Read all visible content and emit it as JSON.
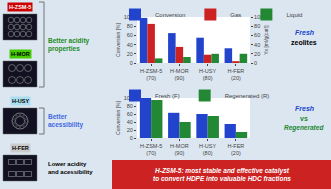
{
  "chart_data": [
    {
      "type": "bar",
      "categories": [
        "H-ZSM-5\n(70)",
        "H-MOR\n(90)",
        "H-USY\n(80)",
        "H-FER\n(20)"
      ],
      "series": [
        {
          "name": "Conversion",
          "color": "#2244cc",
          "values": [
            98,
            65,
            55,
            32
          ]
        },
        {
          "name": "Gas",
          "color": "#cc2222",
          "values": [
            85,
            35,
            18,
            4
          ]
        },
        {
          "name": "Liquid",
          "color": "#228833",
          "values": [
            10,
            13,
            20,
            20
          ]
        }
      ],
      "ylabel": "Conversion [%]",
      "y2label": "Yx [ml/g(cat)]",
      "ylim": [
        0,
        100
      ],
      "yticks": [
        0,
        20,
        40,
        60,
        80,
        100
      ],
      "y2lim": [
        0,
        100
      ],
      "y2ticks": [
        0,
        20,
        40,
        60,
        80,
        100
      ],
      "grid": false,
      "legend": "top",
      "annotations": [
        {
          "text": "H-ZSM-5",
          "color": "#cc0000"
        },
        {
          "text": "H-MOR",
          "color": "#44cc00"
        },
        {
          "text": "H-USY",
          "color": "#aaddee"
        },
        {
          "text": "H-FER",
          "color": "#cccccc"
        },
        {
          "text": "Better acidity\nproperties",
          "color": "#228B22"
        },
        {
          "text": "Better\nacessibility",
          "color": "#4169E1"
        },
        {
          "text": "Lower acidity\nand acessibility",
          "color": "black"
        },
        {
          "text": "Fresh",
          "color": "#2244cc"
        },
        {
          "text": "zeolites",
          "color": "black"
        }
      ]
    },
    {
      "type": "bar",
      "categories": [
        "H-ZSM-5\n(70)",
        "H-MOR\n(90)",
        "H-USY\n(80)",
        "H-FER\n(20)"
      ],
      "series": [
        {
          "name": "Fresh (F)",
          "color": "#2244cc",
          "values": [
            100,
            63,
            60,
            35
          ]
        },
        {
          "name": "Regenerated (R)",
          "color": "#228833",
          "values": [
            95,
            40,
            55,
            15
          ]
        }
      ],
      "ylabel": "Conversion [%]",
      "ylim": [
        0,
        100
      ],
      "yticks": [
        0,
        20,
        40,
        60,
        80,
        100
      ],
      "grid": false,
      "legend": "top",
      "annotations": [
        {
          "text": "Fresh",
          "color": "#2244cc"
        },
        {
          "text": "vs",
          "color": "#228833"
        },
        {
          "text": "Regenerated",
          "color": "#228833"
        },
        {
          "text": "H-ZSM-5: most stable and effective catalyst\nto convert HDPE into valuable HDC fractions",
          "color": "#cc2222"
        }
      ]
    }
  ]
}
